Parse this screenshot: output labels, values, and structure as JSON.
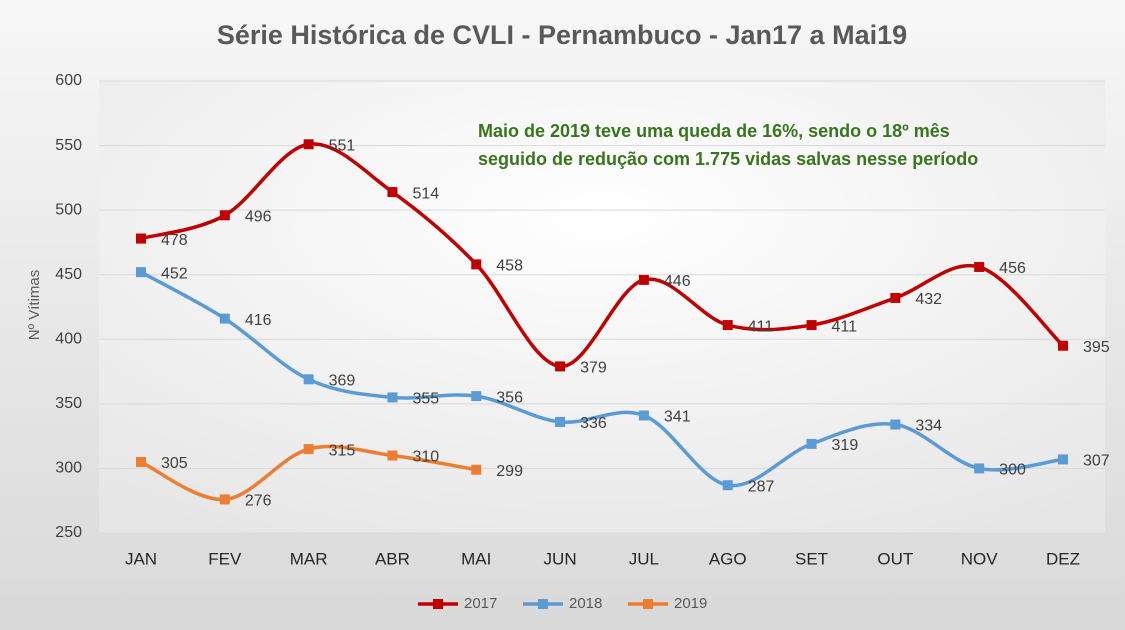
{
  "chart_data": {
    "type": "line",
    "title": "Série Histórica de CVLI - Pernambuco - Jan17 a Mai19",
    "y_label": "Nº Vítimas",
    "annotation": [
      "Maio de 2019 teve uma queda de 16%, sendo o 18º mês",
      "seguido de redução com 1.775 vidas salvas nesse período"
    ],
    "categories": [
      "JAN",
      "FEV",
      "MAR",
      "ABR",
      "MAI",
      "JUN",
      "JUL",
      "AGO",
      "SET",
      "OUT",
      "NOV",
      "DEZ"
    ],
    "series": [
      {
        "name": "2017",
        "color": "#c00000",
        "values": [
          478,
          496,
          551,
          514,
          458,
          379,
          446,
          411,
          411,
          432,
          456,
          395
        ]
      },
      {
        "name": "2018",
        "color": "#5b9bd5",
        "values": [
          452,
          416,
          369,
          355,
          356,
          336,
          341,
          287,
          319,
          334,
          300,
          307
        ]
      },
      {
        "name": "2019",
        "color": "#ed7d31",
        "values": [
          305,
          276,
          315,
          310,
          299,
          null,
          null,
          null,
          null,
          null,
          null,
          null
        ]
      }
    ],
    "ylim": [
      250,
      600
    ],
    "yticks": [
      250,
      300,
      350,
      400,
      450,
      500,
      550,
      600
    ],
    "grid": true,
    "legend": "bottom"
  }
}
